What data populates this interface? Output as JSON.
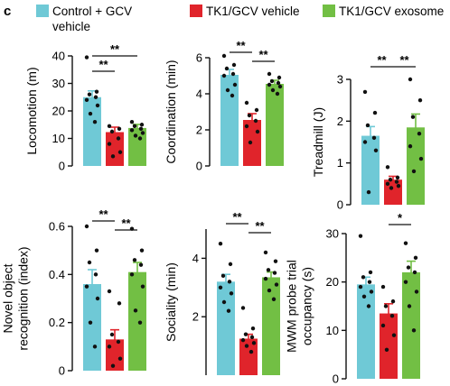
{
  "panel_letter": "c",
  "legend": [
    {
      "label_lines": [
        "Control + GCV",
        "vehicle"
      ],
      "color": "#6fc9d6"
    },
    {
      "label_lines": [
        "TK1/GCV vehicle"
      ],
      "color": "#e0242b"
    },
    {
      "label_lines": [
        "TK1/GCV exosome"
      ],
      "color": "#72bf44"
    }
  ],
  "chart_data": [
    {
      "type": "bar",
      "ylabel_lines": [
        "Locomotion (m)"
      ],
      "ylim": [
        0,
        40
      ],
      "yticks": [
        0,
        10,
        20,
        30,
        40
      ],
      "categories": [
        "Control + GCV vehicle",
        "TK1/GCV vehicle",
        "TK1/GCV exosome"
      ],
      "values": [
        25,
        12.3,
        13.8
      ],
      "errors": [
        2.3,
        1.8,
        1.3
      ],
      "points": [
        [
          39.5,
          27,
          26,
          25,
          24,
          22,
          19,
          16
        ],
        [
          14.5,
          13.5,
          12.5,
          10,
          8,
          5,
          3.5
        ],
        [
          16,
          15,
          14.5,
          13.5,
          13,
          12,
          11,
          10
        ]
      ],
      "significance": [
        {
          "pair": [
            0,
            2
          ],
          "label": "**"
        },
        {
          "pair": [
            0,
            1
          ],
          "label": "**"
        }
      ]
    },
    {
      "type": "bar",
      "ylabel_lines": [
        "Coordination (min)"
      ],
      "ylim": [
        0,
        6
      ],
      "yticks": [
        0,
        2,
        4,
        6
      ],
      "categories": [
        "Control + GCV vehicle",
        "TK1/GCV vehicle",
        "TK1/GCV exosome"
      ],
      "values": [
        5.05,
        2.55,
        4.55
      ],
      "errors": [
        0.3,
        0.35,
        0.2
      ],
      "points": [
        [
          6.1,
          5.6,
          5.4,
          5.1,
          5.0,
          4.5,
          4.2,
          3.9
        ],
        [
          3.5,
          3.1,
          2.8,
          2.5,
          2.2,
          1.9,
          1.3
        ],
        [
          5.1,
          4.9,
          4.7,
          4.6,
          4.5,
          4.4,
          4.2,
          4.0
        ]
      ],
      "significance": [
        {
          "pair": [
            0,
            1
          ],
          "label": "**"
        },
        {
          "pair": [
            1,
            2
          ],
          "label": "**"
        }
      ]
    },
    {
      "type": "bar",
      "ylabel_lines": [
        "Treadmill (J)"
      ],
      "ylim": [
        0,
        3
      ],
      "yticks": [
        0,
        1,
        2,
        3
      ],
      "categories": [
        "Control + GCV vehicle",
        "TK1/GCV vehicle",
        "TK1/GCV exosome"
      ],
      "values": [
        1.65,
        0.6,
        1.85
      ],
      "errors": [
        0.22,
        0.08,
        0.32
      ],
      "points": [
        [
          2.7,
          2.2,
          1.9,
          1.6,
          1.5,
          1.3,
          0.3
        ],
        [
          0.9,
          0.65,
          0.6,
          0.55,
          0.5,
          0.45,
          0.4
        ],
        [
          3.0,
          2.5,
          2.1,
          1.7,
          1.4,
          1.1,
          0.8
        ]
      ],
      "significance": [
        {
          "pair": [
            0,
            1
          ],
          "label": "**"
        },
        {
          "pair": [
            1,
            2
          ],
          "label": "**"
        }
      ]
    },
    {
      "type": "bar",
      "ylabel_lines": [
        "Novel object",
        "recognition (index)"
      ],
      "ylim": [
        0,
        0.6
      ],
      "yticks": [
        0,
        0.2,
        0.4,
        0.6
      ],
      "ytick_labels": [
        "0",
        "0.2",
        "0.4",
        "0.6"
      ],
      "categories": [
        "Control + GCV vehicle",
        "TK1/GCV vehicle",
        "TK1/GCV exosome"
      ],
      "values": [
        0.36,
        0.13,
        0.41
      ],
      "errors": [
        0.06,
        0.04,
        0.04
      ],
      "points": [
        [
          0.6,
          0.5,
          0.45,
          0.4,
          0.35,
          0.3,
          0.2,
          0.1
        ],
        [
          0.33,
          0.28,
          0.15,
          0.12,
          0.1,
          0.05,
          0.02
        ],
        [
          0.59,
          0.5,
          0.46,
          0.44,
          0.4,
          0.35,
          0.25,
          0.2
        ]
      ],
      "significance": [
        {
          "pair": [
            0,
            1
          ],
          "label": "**"
        },
        {
          "pair": [
            1,
            2
          ],
          "label": "**"
        }
      ]
    },
    {
      "type": "bar",
      "ylabel_lines": [
        "Sociality (min)"
      ],
      "ylim": [
        0,
        5
      ],
      "yticks": [
        2,
        4
      ],
      "categories": [
        "Control + GCV vehicle",
        "TK1/GCV vehicle",
        "TK1/GCV exosome"
      ],
      "values": [
        3.2,
        1.25,
        3.35
      ],
      "errors": [
        0.25,
        0.15,
        0.18
      ],
      "points": [
        [
          4.5,
          3.8,
          3.4,
          3.2,
          3.0,
          2.8,
          2.5,
          2.2
        ],
        [
          2.3,
          1.6,
          1.4,
          1.3,
          1.2,
          1.1,
          1.0,
          0.8
        ],
        [
          4.2,
          3.9,
          3.6,
          3.5,
          3.3,
          3.1,
          2.9,
          2.6
        ]
      ],
      "significance": [
        {
          "pair": [
            0,
            1
          ],
          "label": "**"
        },
        {
          "pair": [
            1,
            2
          ],
          "label": "**"
        }
      ]
    },
    {
      "type": "bar",
      "ylabel_lines": [
        "MWM probe trial",
        "occupancy (s)"
      ],
      "ylim": [
        0,
        30
      ],
      "yticks": [
        0,
        10,
        20,
        30
      ],
      "categories": [
        "Control + GCV vehicle",
        "TK1/GCV vehicle",
        "TK1/GCV exosome"
      ],
      "values": [
        19.5,
        13.5,
        22
      ],
      "errors": [
        1.5,
        2.0,
        2.3
      ],
      "points": [
        [
          29.5,
          22,
          21,
          20,
          19,
          18,
          17,
          15
        ],
        [
          19,
          16,
          15,
          13,
          11,
          9,
          6
        ],
        [
          28,
          25,
          23,
          22,
          20,
          18,
          15,
          10
        ]
      ],
      "significance": [
        {
          "pair": [
            1,
            2
          ],
          "label": "*"
        }
      ]
    }
  ]
}
